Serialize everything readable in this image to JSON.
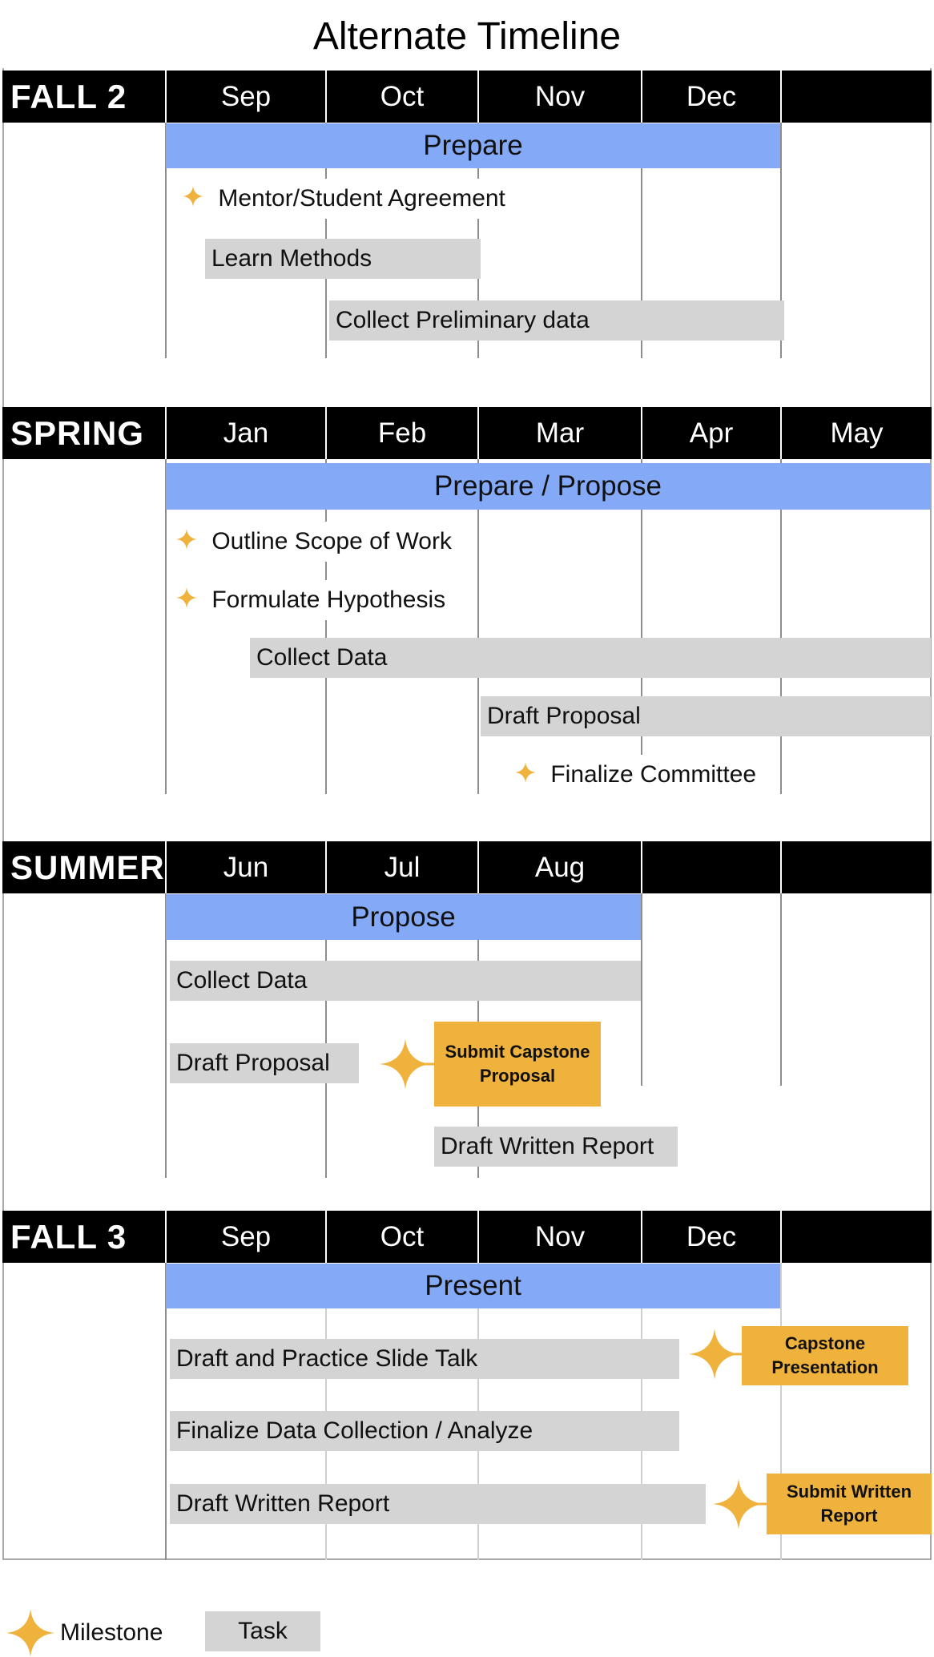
{
  "title": "Alternate Timeline",
  "colors": {
    "phase": "#84a9f7",
    "task": "#d4d4d4",
    "milestone": "#efb23d",
    "header": "#000000"
  },
  "sections": [
    {
      "season": "FALL 2",
      "months": [
        "Sep",
        "Oct",
        "Nov",
        "Dec",
        ""
      ],
      "phase": "Prepare",
      "items": [
        {
          "kind": "milestone",
          "label": "Mentor/Student Agreement"
        },
        {
          "kind": "task",
          "label": "Learn Methods"
        },
        {
          "kind": "task",
          "label": "Collect Preliminary data"
        }
      ]
    },
    {
      "season": "SPRING",
      "months": [
        "Jan",
        "Feb",
        "Mar",
        "Apr",
        "May"
      ],
      "phase": "Prepare / Propose",
      "items": [
        {
          "kind": "milestone",
          "label": "Outline Scope of Work"
        },
        {
          "kind": "milestone",
          "label": "Formulate Hypothesis"
        },
        {
          "kind": "task",
          "label": "Collect Data"
        },
        {
          "kind": "task",
          "label": "Draft Proposal"
        },
        {
          "kind": "milestone",
          "label": "Finalize Committee"
        }
      ]
    },
    {
      "season": "SUMMER",
      "months": [
        "Jun",
        "Jul",
        "Aug",
        "",
        ""
      ],
      "phase": "Propose",
      "items": [
        {
          "kind": "task",
          "label": "Collect Data"
        },
        {
          "kind": "task",
          "label": "Draft Proposal"
        },
        {
          "kind": "key-milestone",
          "label": "Submit Capstone Proposal"
        },
        {
          "kind": "task",
          "label": "Draft Written Report"
        }
      ]
    },
    {
      "season": "FALL 3",
      "months": [
        "Sep",
        "Oct",
        "Nov",
        "Dec",
        ""
      ],
      "phase": "Present",
      "items": [
        {
          "kind": "task",
          "label": "Draft and Practice Slide Talk"
        },
        {
          "kind": "key-milestone",
          "label": "Capstone Presentation"
        },
        {
          "kind": "task",
          "label": "Finalize Data Collection / Analyze"
        },
        {
          "kind": "task",
          "label": "Draft Written Report"
        },
        {
          "kind": "key-milestone",
          "label": "Submit Written Report"
        }
      ]
    }
  ],
  "legend": {
    "milestone": "Milestone",
    "task": "Task",
    "milestone_icon": "star-icon"
  }
}
